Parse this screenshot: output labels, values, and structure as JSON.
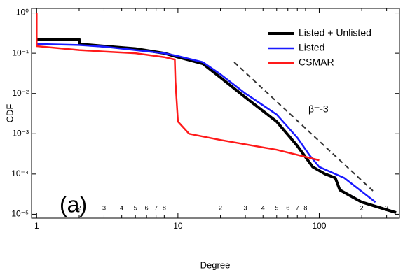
{
  "chart_data": {
    "type": "line",
    "xlabel": "Degree",
    "ylabel": "CDF",
    "xscale": "log",
    "yscale": "log",
    "xlim": [
      0.92,
      370
    ],
    "ylim": [
      8e-06,
      1.3
    ],
    "xticks": [
      1,
      2,
      3,
      4,
      5,
      6,
      7,
      8,
      10,
      {
        "value": 20,
        "label": "2"
      },
      {
        "value": 30,
        "label": "3"
      },
      {
        "value": 40,
        "label": "4"
      },
      {
        "value": 50,
        "label": "5"
      },
      {
        "value": 60,
        "label": "6"
      },
      {
        "value": 70,
        "label": "7"
      },
      {
        "value": 80,
        "label": "8"
      },
      100,
      {
        "value": 200,
        "label": "2"
      },
      {
        "value": 300,
        "label": "3"
      }
    ],
    "yticks": [
      {
        "value": 1,
        "label": "10⁰"
      },
      {
        "value": 0.1,
        "label": "10⁻¹"
      },
      {
        "value": 0.01,
        "label": "10⁻²"
      },
      {
        "value": 0.001,
        "label": "10⁻³"
      },
      {
        "value": 0.0001,
        "label": "10⁻⁴"
      },
      {
        "value": 1e-05,
        "label": "10⁻⁵"
      }
    ],
    "legend": "upper right",
    "series": [
      {
        "name": "Listed + Unlisted",
        "color": "#000000",
        "width": 4,
        "x": [
          1,
          2,
          2,
          3,
          5,
          8,
          10,
          15,
          20,
          30,
          50,
          70,
          90,
          110,
          130,
          140,
          200,
          300,
          350
        ],
        "values": [
          0.22,
          0.22,
          0.17,
          0.15,
          0.13,
          0.1,
          0.08,
          0.055,
          0.025,
          0.008,
          0.002,
          0.0005,
          0.00015,
          0.0001,
          8e-05,
          4e-05,
          2e-05,
          1.3e-05,
          1.1e-05
        ]
      },
      {
        "name": "Listed",
        "color": "#1a1aff",
        "width": 2.5,
        "x": [
          1,
          2,
          3,
          5,
          8,
          10,
          15,
          20,
          30,
          50,
          70,
          85,
          100,
          150,
          250
        ],
        "values": [
          0.17,
          0.16,
          0.145,
          0.12,
          0.1,
          0.085,
          0.06,
          0.03,
          0.01,
          0.003,
          0.0008,
          0.0003,
          0.00015,
          8e-05,
          2e-05
        ]
      },
      {
        "name": "CSMAR",
        "color": "#ff1a1a",
        "width": 2.5,
        "x": [
          1,
          1,
          2,
          3,
          5,
          8,
          9.5,
          9.6,
          10,
          12,
          20,
          50,
          100
        ],
        "values": [
          1,
          0.15,
          0.12,
          0.11,
          0.1,
          0.08,
          0.07,
          0.02,
          0.002,
          0.001,
          0.0007,
          0.0004,
          0.00022
        ]
      }
    ],
    "guide_line": {
      "x": [
        25,
        240
      ],
      "values": [
        0.06,
        3.8e-05
      ],
      "label": "β=-3",
      "color": "#333333"
    },
    "panel_label": "(a)"
  }
}
